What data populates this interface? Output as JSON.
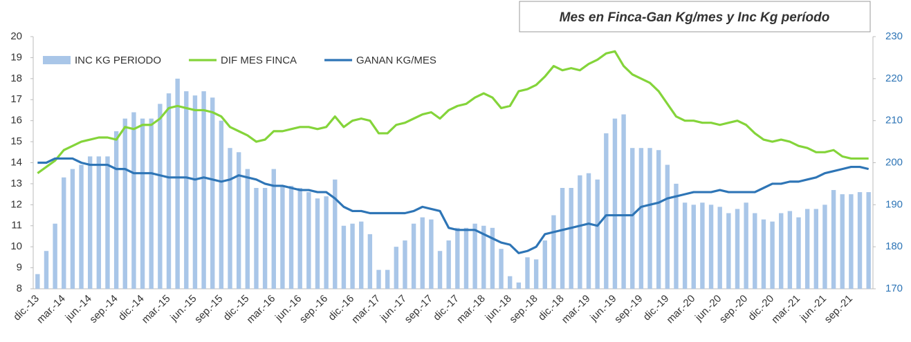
{
  "chart_data": {
    "type": "bar_line",
    "title": "Mes en Finca-Gan Kg/mes y Inc Kg período",
    "categories": [
      "dic.-13",
      null,
      null,
      "mar.-14",
      null,
      null,
      "jun.-14",
      null,
      null,
      "sep.-14",
      null,
      null,
      "dic.-14",
      null,
      null,
      "mar.-15",
      null,
      null,
      "jun.-15",
      null,
      null,
      "sep.-15",
      null,
      null,
      "dic.-15",
      null,
      null,
      "mar.-16",
      null,
      null,
      "jun.-16",
      null,
      null,
      "sep.-16",
      null,
      null,
      "dic.-16",
      null,
      null,
      "mar.-17",
      null,
      null,
      "jun.-17",
      null,
      null,
      "sep.-17",
      null,
      null,
      "dic.-17",
      null,
      null,
      "mar.-18",
      null,
      null,
      "jun.-18",
      null,
      null,
      "sep.-18",
      null,
      null,
      "dic.-18",
      null,
      null,
      "mar.-19",
      null,
      null,
      "jun.-19",
      null,
      null,
      "sep.-19",
      null,
      null,
      "dic.-19",
      null,
      null,
      "mar.-20",
      null,
      null,
      "jun.-20",
      null,
      null,
      "sep.-20",
      null,
      null,
      "dic.-20",
      null,
      null,
      "mar.-21",
      null,
      null,
      "jun.-21",
      null,
      null,
      "sep.-21",
      null,
      null
    ],
    "series": [
      {
        "name": "INC KG PERIODO",
        "type": "bar",
        "axis": "y2",
        "color": "#a9c6e8",
        "values": [
          173.5,
          179,
          185.5,
          196.5,
          198.5,
          199.5,
          201.5,
          201.5,
          201.5,
          207.5,
          210.5,
          212,
          210.5,
          210.5,
          214,
          216.5,
          220,
          217,
          216,
          217,
          215.5,
          210,
          203.5,
          202.5,
          198.5,
          194,
          194,
          198.5,
          194.5,
          194.5,
          194,
          193,
          191.5,
          192,
          196,
          185,
          185.5,
          186,
          183,
          174.5,
          174.5,
          180,
          181.5,
          185.5,
          187,
          186.5,
          179,
          181.5,
          184.5,
          184.5,
          185.5,
          185,
          184.5,
          179.5,
          173,
          171.5,
          177.5,
          177,
          181.5,
          187.5,
          194,
          194,
          197,
          197.5,
          196,
          207,
          210.5,
          211.5,
          203.5,
          203.5,
          203.5,
          203,
          199.5,
          195,
          190.5,
          190,
          190.5,
          190,
          189.5,
          188,
          189,
          190.5,
          188,
          186.5,
          186,
          188,
          188.5,
          187,
          189,
          189,
          190,
          193.5,
          192.5,
          192.5,
          193,
          193
        ]
      },
      {
        "name": "DIF MES FINCA",
        "type": "line",
        "color": "#84d43a",
        "values": [
          13.5,
          13.8,
          14.1,
          14.6,
          14.8,
          15.0,
          15.1,
          15.2,
          15.2,
          15.1,
          15.7,
          15.6,
          15.8,
          15.8,
          16.1,
          16.6,
          16.7,
          16.6,
          16.5,
          16.5,
          16.4,
          16.2,
          15.7,
          15.5,
          15.3,
          15.0,
          15.1,
          15.5,
          15.5,
          15.6,
          15.7,
          15.7,
          15.6,
          15.7,
          16.2,
          15.7,
          16.0,
          16.1,
          16.0,
          15.4,
          15.4,
          15.8,
          15.9,
          16.1,
          16.3,
          16.4,
          16.1,
          16.5,
          16.7,
          16.8,
          17.1,
          17.3,
          17.1,
          16.6,
          16.7,
          17.4,
          17.5,
          17.7,
          18.1,
          18.6,
          18.4,
          18.5,
          18.4,
          18.7,
          18.9,
          19.2,
          19.3,
          18.6,
          18.2,
          18.0,
          17.8,
          17.4,
          16.8,
          16.2,
          16.0,
          16.0,
          15.9,
          15.9,
          15.8,
          15.9,
          16.0,
          15.8,
          15.4,
          15.1,
          15.0,
          15.1,
          15.0,
          14.8,
          14.7,
          14.5,
          14.5,
          14.6,
          14.3,
          14.2,
          14.2,
          14.2
        ]
      },
      {
        "name": "GANAN KG/MES",
        "type": "line",
        "color": "#2e75b6",
        "values": [
          14.0,
          14.0,
          14.2,
          14.2,
          14.2,
          14.0,
          13.9,
          13.9,
          13.9,
          13.7,
          13.7,
          13.5,
          13.5,
          13.5,
          13.4,
          13.3,
          13.3,
          13.3,
          13.2,
          13.3,
          13.2,
          13.1,
          13.2,
          13.4,
          13.3,
          13.2,
          13.0,
          12.9,
          12.9,
          12.8,
          12.7,
          12.7,
          12.6,
          12.6,
          12.3,
          11.9,
          11.7,
          11.7,
          11.6,
          11.6,
          11.6,
          11.6,
          11.6,
          11.7,
          11.9,
          11.8,
          11.7,
          10.9,
          10.8,
          10.8,
          10.8,
          10.6,
          10.4,
          10.2,
          10.1,
          9.7,
          9.8,
          10.0,
          10.6,
          10.7,
          10.8,
          10.9,
          11.0,
          11.1,
          11.0,
          11.5,
          11.5,
          11.5,
          11.5,
          11.9,
          12.0,
          12.1,
          12.3,
          12.4,
          12.5,
          12.6,
          12.6,
          12.6,
          12.7,
          12.6,
          12.6,
          12.6,
          12.6,
          12.8,
          13.0,
          13.0,
          13.1,
          13.1,
          13.2,
          13.3,
          13.5,
          13.6,
          13.7,
          13.8,
          13.8,
          13.7
        ]
      }
    ],
    "ylim": [
      8,
      20
    ],
    "yticks": [
      8,
      9,
      10,
      11,
      12,
      13,
      14,
      15,
      16,
      17,
      18,
      19,
      20
    ],
    "y2lim": [
      170,
      230
    ],
    "y2ticks": [
      170,
      180,
      190,
      200,
      210,
      220,
      230
    ],
    "y2color": "#2e75b6"
  }
}
